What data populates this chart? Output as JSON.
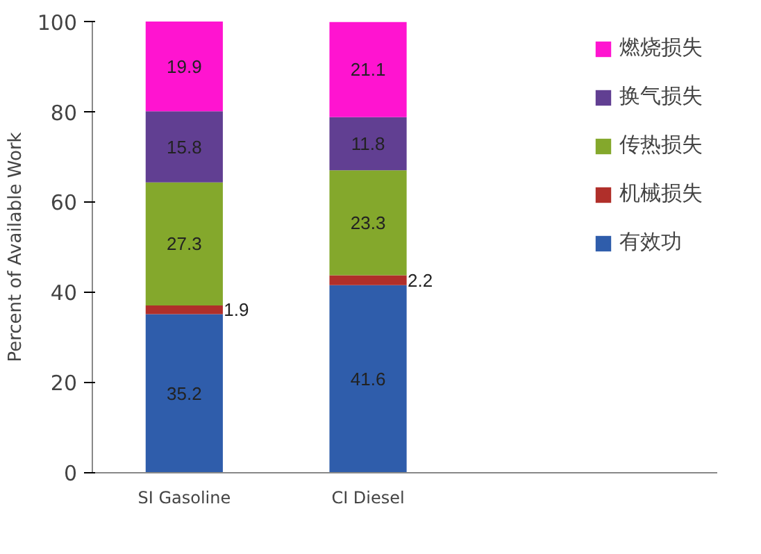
{
  "chart_data": {
    "type": "bar",
    "stacked": true,
    "ylabel": "Percent of Available Work",
    "categories": [
      "SI Gasoline",
      "CI Diesel"
    ],
    "series": [
      {
        "name": "有效功",
        "color": "#2f5dab",
        "values": [
          35.2,
          41.6
        ]
      },
      {
        "name": "机械损失",
        "color": "#b02f2a",
        "values": [
          1.9,
          2.2
        ]
      },
      {
        "name": "传热损失",
        "color": "#84a82c",
        "values": [
          27.3,
          23.3
        ]
      },
      {
        "name": "换气损失",
        "color": "#613f92",
        "values": [
          15.8,
          11.8
        ]
      },
      {
        "name": "燃烧损失",
        "color": "#ff14d0",
        "values": [
          19.9,
          21.1
        ]
      }
    ],
    "ylim": [
      0,
      100.1
    ],
    "yticks": [
      0,
      20,
      40,
      60,
      80,
      100
    ],
    "grid": false,
    "legend": "right",
    "data_labels": true
  }
}
